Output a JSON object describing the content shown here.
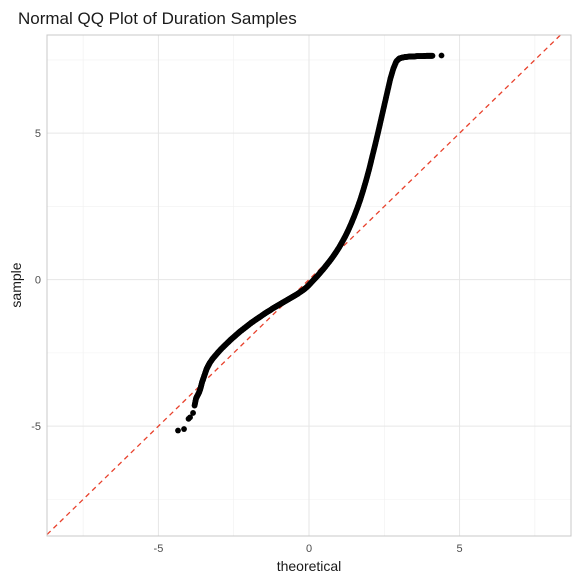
{
  "chart_data": {
    "type": "scatter",
    "title": "Normal QQ Plot of Duration Samples",
    "xlabel": "theoretical",
    "ylabel": "sample",
    "xlim": [
      -8.7,
      8.7
    ],
    "ylim": [
      -8.75,
      8.35
    ],
    "x_ticks": [
      -5,
      0,
      5
    ],
    "x_tick_labels": [
      "-5",
      "0",
      "5"
    ],
    "y_ticks": [
      -5,
      0,
      5
    ],
    "y_tick_labels": [
      "-5",
      "0",
      "5"
    ],
    "grid": true,
    "legend": "none",
    "reference_line": {
      "slope": 1,
      "intercept": 0,
      "style": "dashed",
      "color": "#e8412c"
    },
    "point_color": "#000000",
    "series": [
      {
        "x": [
          -4.35,
          -4.15,
          -4.0,
          -3.95,
          -3.85,
          -3.8,
          -3.75,
          -3.7,
          -3.65,
          -3.6,
          -3.55,
          -3.5,
          -3.45,
          -3.4,
          -3.35,
          -3.3,
          -3.2,
          -3.1,
          -3.0,
          -2.9,
          -2.8,
          -2.7,
          -2.6,
          -2.5,
          -2.4,
          -2.3,
          -2.2,
          -2.1,
          -2.0,
          -1.9,
          -1.8,
          -1.7,
          -1.6,
          -1.5,
          -1.4,
          -1.3,
          -1.2,
          -1.1,
          -1.0,
          -0.9,
          -0.8,
          -0.7,
          -0.6,
          -0.5,
          -0.4,
          -0.3,
          -0.2,
          -0.1,
          0.0,
          0.1,
          0.2,
          0.3,
          0.4,
          0.5,
          0.6,
          0.7,
          0.8,
          0.9,
          1.0,
          1.1,
          1.2,
          1.3,
          1.4,
          1.5,
          1.6,
          1.7,
          1.8,
          1.9,
          2.0,
          2.1,
          2.2,
          2.3,
          2.4,
          2.5,
          2.6,
          2.7,
          2.8,
          2.9,
          3.0,
          3.1,
          3.2,
          3.3,
          3.4,
          3.5,
          3.6,
          3.7,
          3.8,
          3.9,
          4.0,
          4.1,
          4.4
        ],
        "y": [
          -5.15,
          -5.1,
          -4.75,
          -4.7,
          -4.55,
          -4.3,
          -4.05,
          -3.95,
          -3.85,
          -3.7,
          -3.5,
          -3.35,
          -3.2,
          -3.05,
          -2.95,
          -2.85,
          -2.7,
          -2.58,
          -2.46,
          -2.35,
          -2.25,
          -2.15,
          -2.05,
          -1.96,
          -1.87,
          -1.78,
          -1.7,
          -1.62,
          -1.54,
          -1.46,
          -1.39,
          -1.32,
          -1.25,
          -1.18,
          -1.11,
          -1.05,
          -0.98,
          -0.92,
          -0.86,
          -0.8,
          -0.74,
          -0.68,
          -0.62,
          -0.56,
          -0.5,
          -0.43,
          -0.36,
          -0.28,
          -0.18,
          -0.07,
          0.04,
          0.15,
          0.27,
          0.39,
          0.52,
          0.65,
          0.79,
          0.94,
          1.1,
          1.28,
          1.47,
          1.68,
          1.91,
          2.16,
          2.43,
          2.72,
          3.05,
          3.4,
          3.78,
          4.2,
          4.62,
          5.05,
          5.5,
          5.95,
          6.4,
          6.85,
          7.2,
          7.45,
          7.55,
          7.58,
          7.6,
          7.61,
          7.62,
          7.62,
          7.63,
          7.63,
          7.63,
          7.64,
          7.64,
          7.64,
          7.65
        ]
      }
    ]
  }
}
